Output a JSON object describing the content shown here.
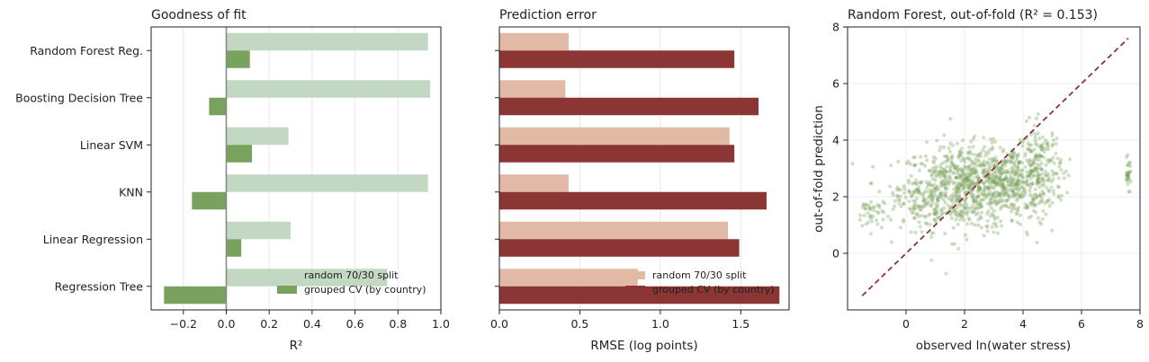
{
  "chart_data": [
    {
      "type": "bar",
      "orientation": "horizontal",
      "title": "Goodness of fit",
      "xlabel": "R²",
      "xlim": [
        -0.35,
        1.0
      ],
      "xticks": [
        -0.2,
        0.0,
        0.2,
        0.4,
        0.6,
        0.8,
        1.0
      ],
      "xtick_labels": [
        "−0.2",
        "0.0",
        "0.2",
        "0.4",
        "0.6",
        "0.8",
        "1.0"
      ],
      "grid": true,
      "legend_position": "lower-right",
      "categories": [
        "Random Forest Reg.",
        "Boosting Decision Tree",
        "Linear SVM",
        "KNN",
        "Linear Regression",
        "Regression Tree"
      ],
      "series": [
        {
          "name": "random 70/30 split",
          "color": "#c2d8c3",
          "values": [
            0.94,
            0.95,
            0.29,
            0.94,
            0.3,
            0.75
          ]
        },
        {
          "name": "grouped CV (by country)",
          "color": "#7aa25f",
          "values": [
            0.11,
            -0.08,
            0.12,
            -0.16,
            0.07,
            -0.29
          ]
        }
      ]
    },
    {
      "type": "bar",
      "orientation": "horizontal",
      "title": "Prediction error",
      "xlabel": "RMSE (log points)",
      "xlim": [
        0.0,
        1.8
      ],
      "xticks": [
        0.0,
        0.5,
        1.0,
        1.5
      ],
      "xtick_labels": [
        "0.0",
        "0.5",
        "1.0",
        "1.5"
      ],
      "grid": true,
      "legend_position": "lower-right",
      "categories": [
        "Random Forest Reg.",
        "Boosting Decision Tree",
        "Linear SVM",
        "KNN",
        "Linear Regression",
        "Regression Tree"
      ],
      "series": [
        {
          "name": "random 70/30 split",
          "color": "#e2b9a5",
          "values": [
            0.43,
            0.41,
            1.43,
            0.43,
            1.42,
            0.86
          ]
        },
        {
          "name": "grouped CV (by country)",
          "color": "#8b3535",
          "values": [
            1.46,
            1.61,
            1.46,
            1.66,
            1.49,
            1.74
          ]
        }
      ]
    },
    {
      "type": "scatter",
      "title": "Random Forest, out-of-fold (R² = 0.153)",
      "xlabel": "observed ln(water stress)",
      "ylabel": "out-of-fold prediction",
      "xlim": [
        -2.0,
        8.0
      ],
      "ylim": [
        -2.0,
        8.0
      ],
      "xticks": [
        0,
        2,
        4,
        6,
        8
      ],
      "yticks": [
        0,
        2,
        4,
        6,
        8
      ],
      "grid": true,
      "point_color": "#7aa25f",
      "reference_line": {
        "from": [
          -1.5,
          -1.5
        ],
        "to": [
          7.6,
          7.6
        ],
        "color": "#8b3535",
        "style": "dashed"
      },
      "clusters": [
        {
          "cx": 2.0,
          "cy": 2.3,
          "sx": 1.1,
          "sy": 0.75,
          "n": 700
        },
        {
          "cx": 3.5,
          "cy": 2.6,
          "sx": 0.8,
          "sy": 0.6,
          "n": 350
        },
        {
          "cx": 4.6,
          "cy": 3.0,
          "sx": 0.35,
          "sy": 0.8,
          "n": 150
        },
        {
          "cx": -1.2,
          "cy": 1.4,
          "sx": 0.25,
          "sy": 0.3,
          "n": 40
        },
        {
          "cx": 7.6,
          "cy": 2.8,
          "sx": 0.05,
          "sy": 0.25,
          "n": 30
        },
        {
          "cx": 0.5,
          "cy": 1.8,
          "sx": 0.5,
          "sy": 0.5,
          "n": 80
        }
      ]
    }
  ]
}
